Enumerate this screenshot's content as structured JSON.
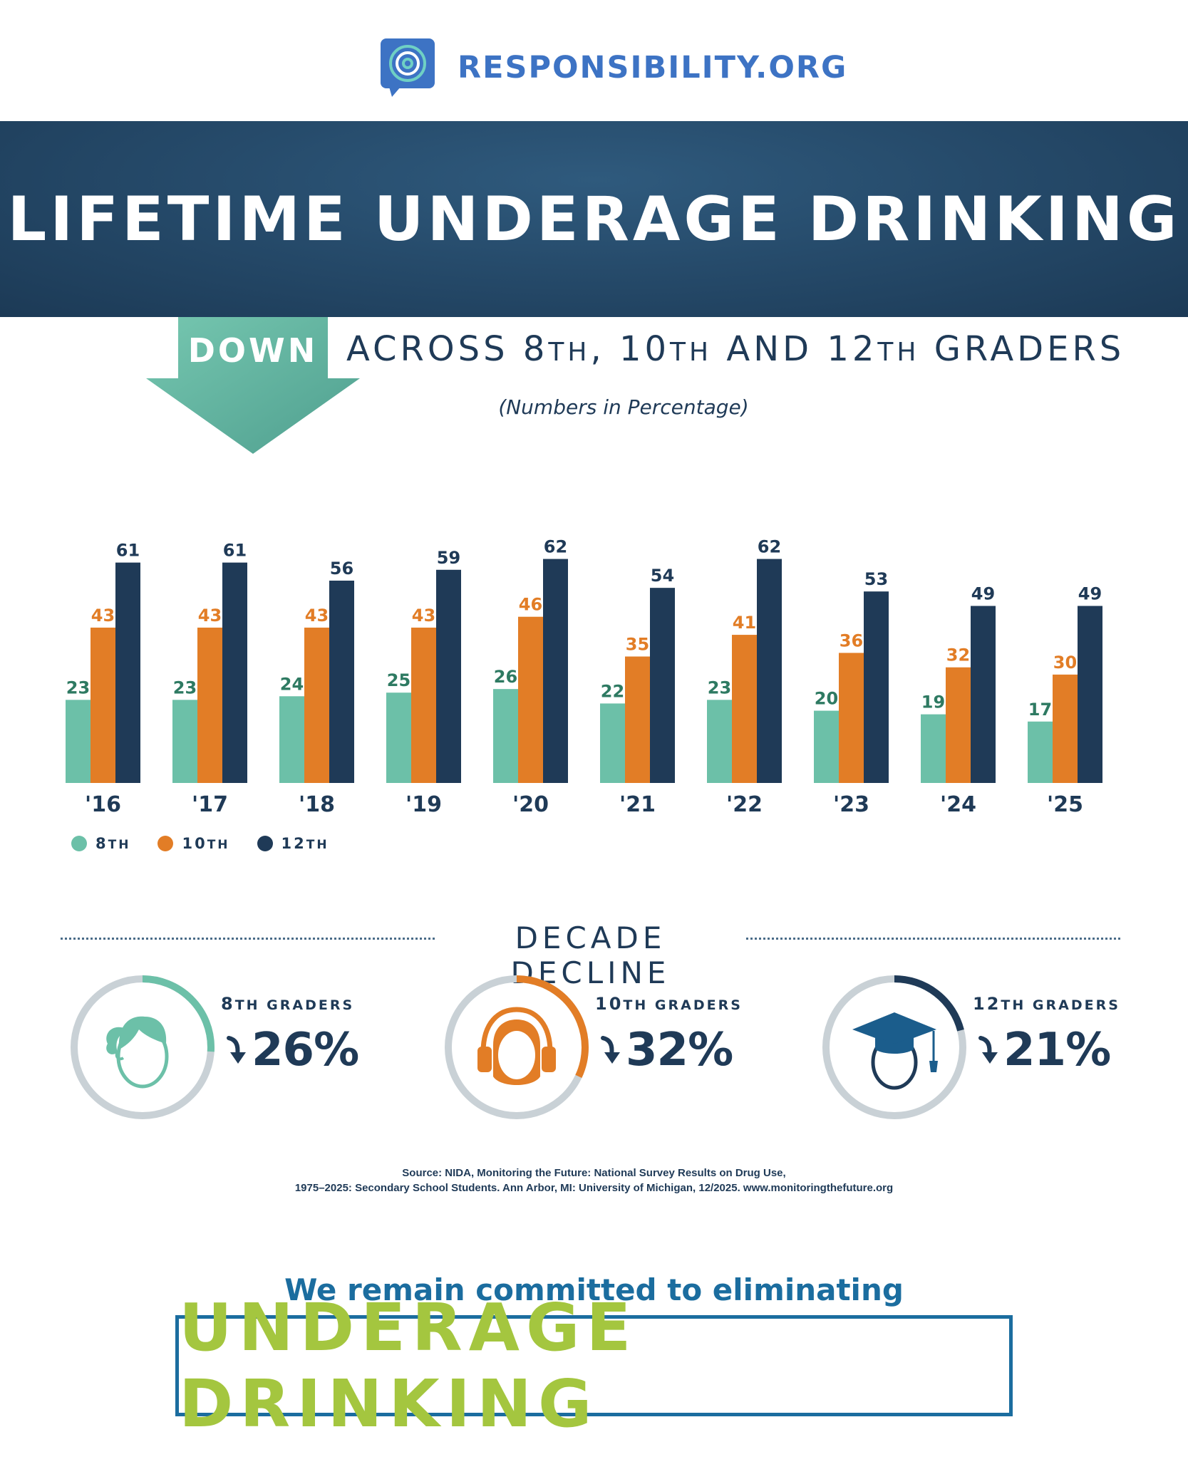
{
  "logo": {
    "text": "RESPONSIBILITY.ORG",
    "icon": "target-speech-bubble-icon"
  },
  "banner": {
    "title": "LIFETIME UNDERAGE DRINKING"
  },
  "headline": {
    "down": "DOWN",
    "subtitle_prefix": "ACROSS 8",
    "subtitle_mid1": ", 10",
    "subtitle_mid2": " AND 12",
    "subtitle_suffix": " GRADERS",
    "th": "TH"
  },
  "note": "(Numbers in Percentage)",
  "colors": {
    "grade8": "#6cc0a8",
    "grade10": "#e27d26",
    "grade12": "#1f3a57",
    "ring_track": "#c9d1d6",
    "accent_blue": "#1b6d9f",
    "accent_green": "#a4c63f"
  },
  "chart_data": {
    "type": "bar",
    "categories": [
      "'16",
      "'17",
      "'18",
      "'19",
      "'20",
      "'21",
      "'22",
      "'23",
      "'24",
      "'25"
    ],
    "series": [
      {
        "name": "8TH",
        "values": [
          23,
          23,
          24,
          25,
          26,
          22,
          23,
          20,
          19,
          17
        ]
      },
      {
        "name": "10TH",
        "values": [
          43,
          43,
          43,
          43,
          46,
          35,
          41,
          36,
          32,
          30
        ]
      },
      {
        "name": "12TH",
        "values": [
          61,
          61,
          56,
          59,
          62,
          54,
          62,
          53,
          49,
          49
        ]
      }
    ],
    "ylim": [
      0,
      70
    ],
    "grid": false,
    "legend": "bottom-left"
  },
  "legend": [
    {
      "num": "8",
      "suffix": "TH"
    },
    {
      "num": "10",
      "suffix": "TH"
    },
    {
      "num": "12",
      "suffix": "TH"
    }
  ],
  "decline": {
    "title": "DECADE DECLINE",
    "grades": [
      {
        "num": "8",
        "suffix": "TH GRADERS",
        "pct": "26%",
        "fraction": 0.26,
        "icon": "girl-face-icon"
      },
      {
        "num": "10",
        "suffix": "TH GRADERS",
        "pct": "32%",
        "fraction": 0.32,
        "icon": "headphones-face-icon"
      },
      {
        "num": "12",
        "suffix": "TH GRADERS",
        "pct": "21%",
        "fraction": 0.21,
        "icon": "graduate-face-icon"
      }
    ]
  },
  "source": {
    "line1": "Source: NIDA, Monitoring the Future: National Survey Results on Drug Use,",
    "line2": "1975–2025: Secondary School Students. Ann Arbor, MI: University of Michigan, 12/2025. www.monitoringthefuture.org"
  },
  "commitment": {
    "lead": "We remain committed to eliminating",
    "emphasis": "UNDERAGE DRINKING"
  }
}
